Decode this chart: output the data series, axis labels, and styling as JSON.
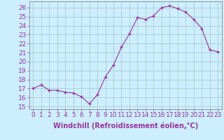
{
  "x": [
    0,
    1,
    2,
    3,
    4,
    5,
    6,
    7,
    8,
    9,
    10,
    11,
    12,
    13,
    14,
    15,
    16,
    17,
    18,
    19,
    20,
    21,
    22,
    23
  ],
  "y": [
    17.0,
    17.4,
    16.8,
    16.8,
    16.6,
    16.5,
    16.1,
    15.3,
    16.3,
    18.3,
    19.6,
    21.6,
    23.1,
    24.9,
    24.7,
    25.1,
    26.0,
    26.2,
    25.9,
    25.5,
    24.7,
    23.7,
    21.3,
    21.1
  ],
  "line_color": "#993399",
  "marker_color": "#993399",
  "bg_color": "#cceeff",
  "grid_color": "#aacccc",
  "xlabel": "Windchill (Refroidissement éolien,°C)",
  "ylabel_ticks": [
    15,
    16,
    17,
    18,
    19,
    20,
    21,
    22,
    23,
    24,
    25,
    26
  ],
  "ylim": [
    14.7,
    26.7
  ],
  "xlim": [
    -0.5,
    23.5
  ],
  "tick_color": "#993399",
  "label_color": "#993399",
  "font_size": 6.5,
  "label_font_size": 7
}
